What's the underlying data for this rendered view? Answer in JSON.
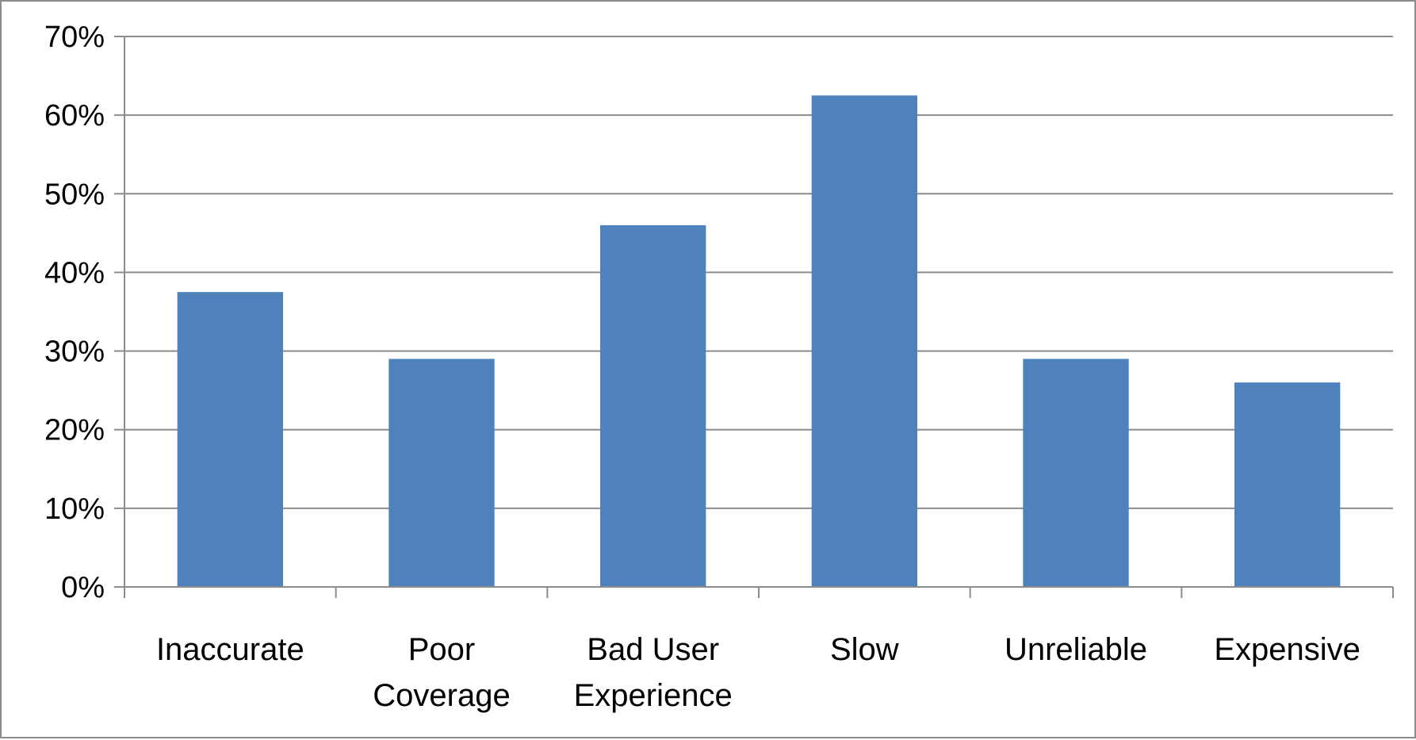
{
  "chart_data": {
    "type": "bar",
    "categories": [
      [
        "Inaccurate"
      ],
      [
        "Poor",
        "Coverage"
      ],
      [
        "Bad User",
        "Experience"
      ],
      [
        "Slow"
      ],
      [
        "Unreliable"
      ],
      [
        "Expensive"
      ]
    ],
    "values": [
      37.5,
      29,
      46,
      62.5,
      29,
      26
    ],
    "ylim": [
      0,
      70
    ],
    "yticks": [
      0,
      10,
      20,
      30,
      40,
      50,
      60,
      70
    ],
    "ytick_labels": [
      "0%",
      "10%",
      "20%",
      "30%",
      "40%",
      "50%",
      "60%",
      "70%"
    ],
    "title": "",
    "xlabel": "",
    "ylabel": "",
    "grid": true,
    "legend": "none",
    "colors": {
      "bar": "#4f81bd",
      "grid": "#8c8c8c",
      "axis": "#8c8c8c",
      "text": "#000000"
    }
  }
}
